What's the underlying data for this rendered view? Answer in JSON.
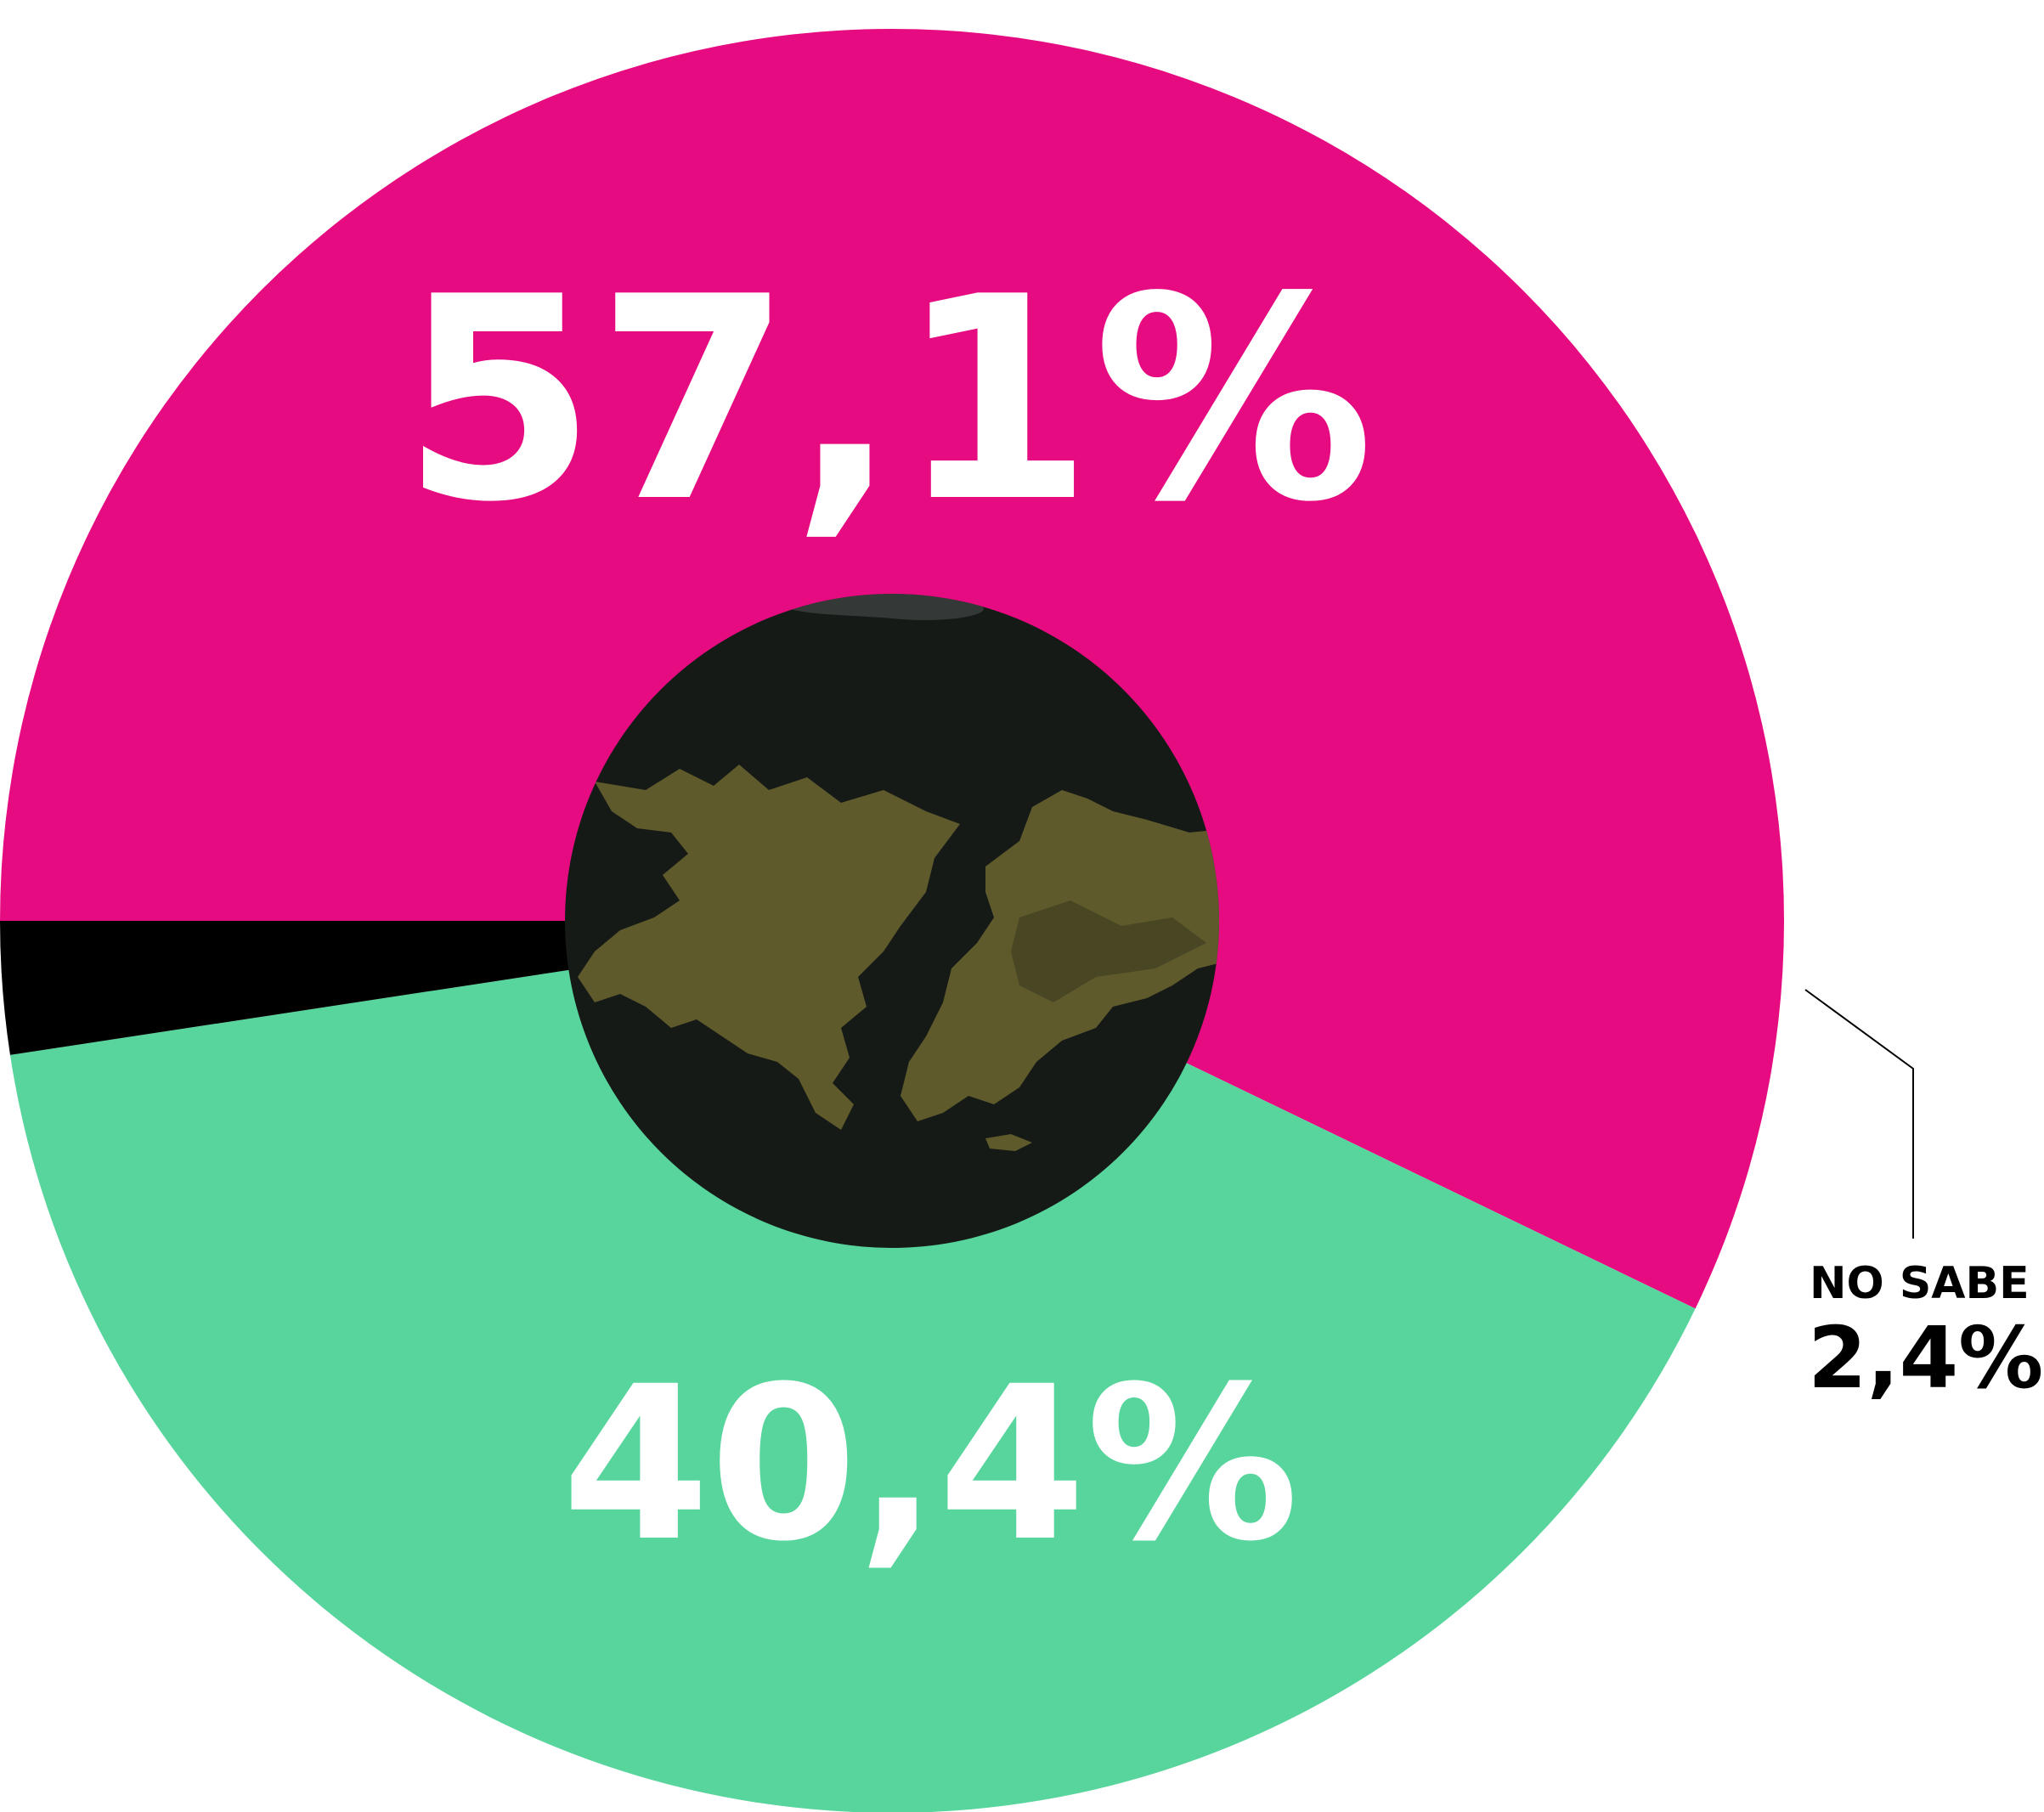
{
  "chart_data": {
    "type": "pie",
    "style": "donut",
    "slices": [
      {
        "value": 57.1,
        "label": "57,1%",
        "color": "#e60b80"
      },
      {
        "value": 40.4,
        "label": "40,4%",
        "color": "#58d59c"
      },
      {
        "value": 2.4,
        "label": "2,4%",
        "name": "NO SABE",
        "color": "#000000"
      }
    ],
    "center_image": "satellite-photo-islands",
    "center_colors": {
      "sea": "#161a17",
      "land": "#5e5a2c",
      "land_dark": "#3f3d1f"
    }
  }
}
